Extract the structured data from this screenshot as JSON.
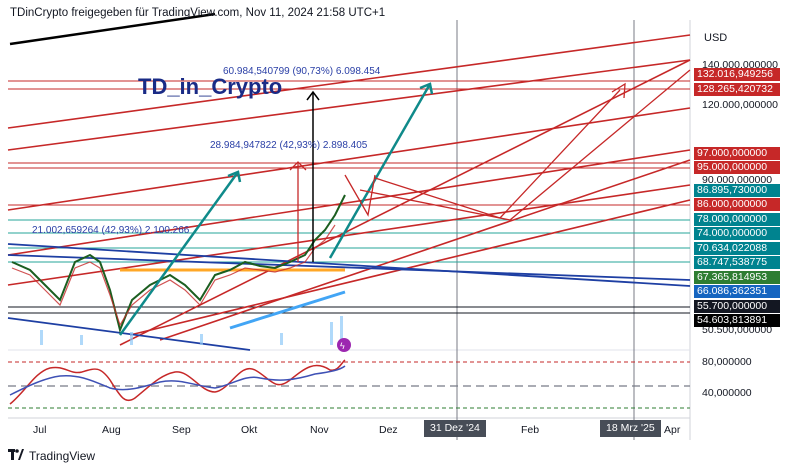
{
  "header": {
    "text": "TDinCrypto freigegeben für TradingView.com, Nov 11, 2024 21:58 UTC+1"
  },
  "watermark": {
    "title": "TD_in_Crypto"
  },
  "currency": "USD",
  "annotations": {
    "top": "60.984,540799 (90,73%) 6.098.454",
    "mid": "28.984,947822 (42,93%) 2.898.405",
    "low": "21.002,659264 (42,93%) 2.100.266"
  },
  "price_axis": {
    "plain": [
      {
        "value": "140.000,000000"
      },
      {
        "value": "120.000,000000"
      },
      {
        "value": "90.000,000000"
      },
      {
        "value": "50.500,000000"
      },
      {
        "value": "80,000000"
      },
      {
        "value": "40,000000"
      }
    ],
    "labels": [
      {
        "value": "132.016,949256",
        "color": "#c62828"
      },
      {
        "value": "128.265,420732",
        "color": "#c62828"
      },
      {
        "value": "97.000,000000",
        "color": "#c62828"
      },
      {
        "value": "95.000,000000",
        "color": "#c62828"
      },
      {
        "value": "86.895,730000",
        "color": "#00838f"
      },
      {
        "value": "86.000,000000",
        "color": "#c62828"
      },
      {
        "value": "78.000,000000",
        "color": "#00838f"
      },
      {
        "value": "74.000,000000",
        "color": "#00838f"
      },
      {
        "value": "70.634,022088",
        "color": "#00838f"
      },
      {
        "value": "68.747,538775",
        "color": "#00838f"
      },
      {
        "value": "67.365,814953",
        "color": "#2e7d32"
      },
      {
        "value": "66.086,362351",
        "color": "#1565c0"
      },
      {
        "value": "55.700,000000",
        "color": "#131722"
      },
      {
        "value": "54.603,813891",
        "color": "#000000"
      }
    ]
  },
  "time_axis": {
    "labels": [
      "Jul",
      "Aug",
      "Sep",
      "Okt",
      "Nov",
      "Dez",
      "Feb",
      "Apr"
    ],
    "highlighted": [
      "31 Dez '24",
      "18 Mrz '25"
    ]
  },
  "branding": {
    "name": "TradingView"
  },
  "colors": {
    "red": "#c62828",
    "teal": "#00897b",
    "blue": "#1e3fa3",
    "dark": "#131722"
  }
}
